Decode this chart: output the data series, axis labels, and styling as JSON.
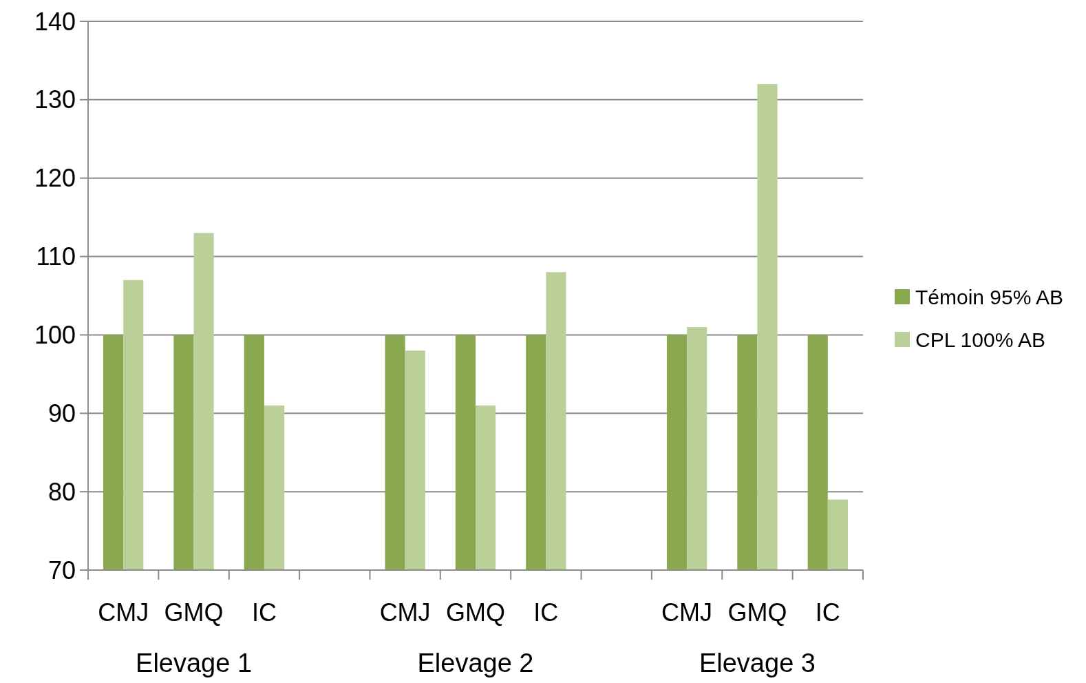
{
  "chart_data": {
    "type": "bar",
    "categories": [
      "CMJ",
      "GMQ",
      "IC",
      null,
      "CMJ",
      "GMQ",
      "IC",
      null,
      "CMJ",
      "GMQ",
      "IC"
    ],
    "series": [
      {
        "name": "Témoin 95% AB",
        "color": "#8aa84f",
        "values": [
          100,
          100,
          100,
          null,
          100,
          100,
          100,
          null,
          100,
          100,
          100
        ]
      },
      {
        "name": "CPL 100% AB",
        "color": "#bad098",
        "values": [
          107,
          113,
          91,
          null,
          98,
          91,
          108,
          null,
          101,
          132,
          79
        ]
      }
    ],
    "annotations": [
      "Elevage 1",
      "Elevage 2",
      "Elevage 3"
    ],
    "ylim": [
      70,
      140
    ],
    "yticks": [
      70,
      80,
      90,
      100,
      110,
      120,
      130,
      140
    ],
    "grid": "y",
    "legend": "right"
  }
}
